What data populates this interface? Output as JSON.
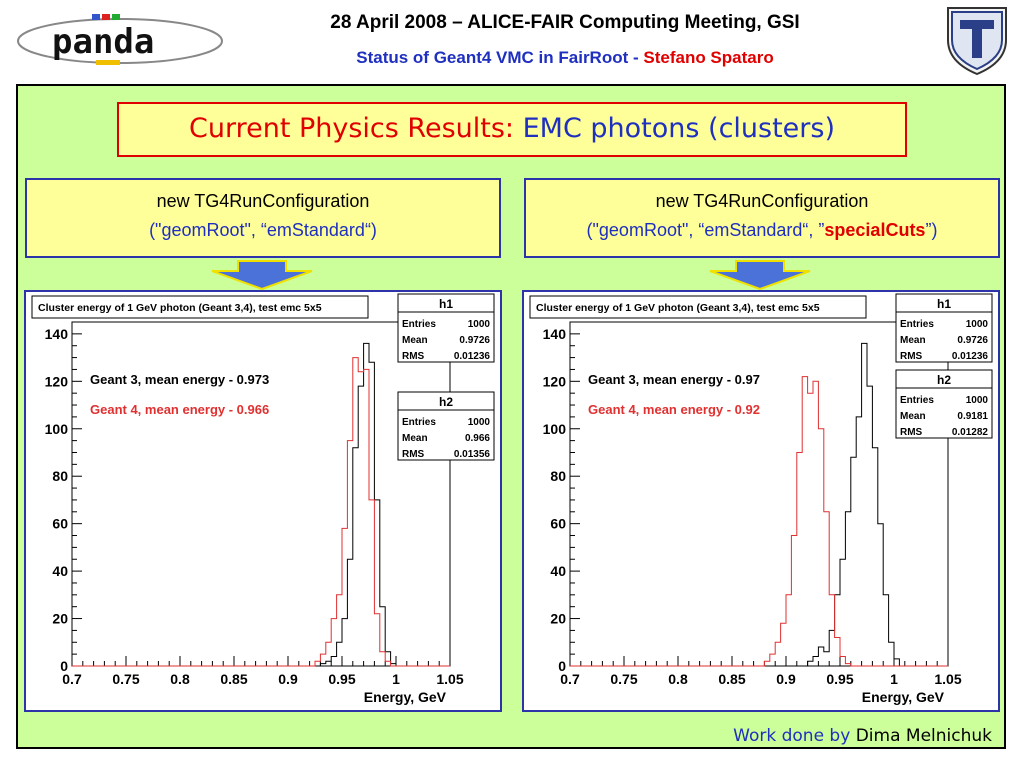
{
  "header": {
    "line1": "28 April 2008 – ALICE-FAIR Computing Meeting, GSI",
    "line2_blue": "Status of Geant4 VMC in FairRoot - ",
    "line2_red": "Stefano Spataro",
    "logo_text": "panda"
  },
  "slide": {
    "title_part1": "Current Physics Results: ",
    "title_part2": "EMC photons (clusters)",
    "left_config": {
      "line1": "new TG4RunConfiguration",
      "line2": "(\"geomRoot\", “emStandard“)"
    },
    "right_config": {
      "line1": "new TG4RunConfiguration",
      "line2a": "(\"geomRoot\", “emStandard“, ”",
      "line2b": "specialCuts",
      "line2c": "”)"
    },
    "footer_a": "Work done by ",
    "footer_b": "Dima Melnichuk"
  },
  "colors": {
    "green_bg": "#ccff99",
    "yellow_box": "#ffff99",
    "title_red": "#e00000",
    "blue": "#1f2fbf",
    "geant3": "#000000",
    "geant4": "#e03030"
  },
  "chart_data": [
    {
      "type": "histogram",
      "title": "Cluster energy of 1 GeV photon (Geant 3,4), test emc 5x5",
      "xlabel": "Energy, GeV",
      "ylabel": "",
      "xlim": [
        0.7,
        1.05
      ],
      "ylim": [
        0,
        145
      ],
      "xticks": [
        "0.7",
        "0.75",
        "0.8",
        "0.85",
        "0.9",
        "0.95",
        "1",
        "1.05"
      ],
      "yticks": [
        "0",
        "20",
        "40",
        "60",
        "80",
        "100",
        "120",
        "140"
      ],
      "annotations": [
        {
          "text": "Geant 3, mean energy - 0.973",
          "color": "#000000"
        },
        {
          "text": "Geant 4, mean energy - 0.966",
          "color": "#e03030"
        }
      ],
      "stats": [
        {
          "name": "h1",
          "rows": [
            [
              "Entries",
              "1000"
            ],
            [
              "Mean",
              "0.9726"
            ],
            [
              "RMS",
              "0.01236"
            ]
          ]
        },
        {
          "name": "h2",
          "rows": [
            [
              "Entries",
              "1000"
            ],
            [
              "Mean",
              "0.966"
            ],
            [
              "RMS",
              "0.01356"
            ]
          ]
        }
      ],
      "series": [
        {
          "name": "Geant 3",
          "color": "#000000",
          "bins": [
            [
              0.93,
              1
            ],
            [
              0.935,
              2
            ],
            [
              0.94,
              4
            ],
            [
              0.945,
              10
            ],
            [
              0.95,
              20
            ],
            [
              0.955,
              45
            ],
            [
              0.96,
              92
            ],
            [
              0.965,
              118
            ],
            [
              0.97,
              136
            ],
            [
              0.975,
              128
            ],
            [
              0.98,
              70
            ],
            [
              0.985,
              25
            ],
            [
              0.99,
              6
            ],
            [
              0.995,
              1
            ]
          ]
        },
        {
          "name": "Geant 4",
          "color": "#e03030",
          "bins": [
            [
              0.925,
              2
            ],
            [
              0.93,
              5
            ],
            [
              0.935,
              10
            ],
            [
              0.94,
              20
            ],
            [
              0.945,
              30
            ],
            [
              0.95,
              58
            ],
            [
              0.955,
              95
            ],
            [
              0.96,
              130
            ],
            [
              0.965,
              124
            ],
            [
              0.97,
              125
            ],
            [
              0.975,
              70
            ],
            [
              0.98,
              22
            ],
            [
              0.985,
              6
            ],
            [
              0.99,
              2
            ]
          ]
        }
      ]
    },
    {
      "type": "histogram",
      "title": "Cluster energy of 1 GeV photon (Geant 3,4), test emc 5x5",
      "xlabel": "Energy, GeV",
      "ylabel": "",
      "xlim": [
        0.7,
        1.05
      ],
      "ylim": [
        0,
        145
      ],
      "xticks": [
        "0.7",
        "0.75",
        "0.8",
        "0.85",
        "0.9",
        "0.95",
        "1",
        "1.05"
      ],
      "yticks": [
        "0",
        "20",
        "40",
        "60",
        "80",
        "100",
        "120",
        "140"
      ],
      "annotations": [
        {
          "text": "Geant 3, mean energy - 0.97",
          "color": "#000000"
        },
        {
          "text": "Geant 4, mean energy - 0.92",
          "color": "#e03030"
        }
      ],
      "stats": [
        {
          "name": "h1",
          "rows": [
            [
              "Entries",
              "1000"
            ],
            [
              "Mean",
              "0.9726"
            ],
            [
              "RMS",
              "0.01236"
            ]
          ]
        },
        {
          "name": "h2",
          "rows": [
            [
              "Entries",
              "1000"
            ],
            [
              "Mean",
              "0.9181"
            ],
            [
              "RMS",
              "0.01282"
            ]
          ]
        }
      ],
      "series": [
        {
          "name": "Geant 3",
          "color": "#000000",
          "bins": [
            [
              0.92,
              2
            ],
            [
              0.925,
              4
            ],
            [
              0.93,
              8
            ],
            [
              0.935,
              6
            ],
            [
              0.94,
              15
            ],
            [
              0.945,
              30
            ],
            [
              0.95,
              45
            ],
            [
              0.955,
              65
            ],
            [
              0.96,
              88
            ],
            [
              0.965,
              105
            ],
            [
              0.97,
              136
            ],
            [
              0.975,
              118
            ],
            [
              0.98,
              92
            ],
            [
              0.985,
              60
            ],
            [
              0.99,
              30
            ],
            [
              0.995,
              10
            ],
            [
              1.0,
              3
            ]
          ]
        },
        {
          "name": "Geant 4",
          "color": "#e03030",
          "bins": [
            [
              0.88,
              2
            ],
            [
              0.885,
              5
            ],
            [
              0.89,
              10
            ],
            [
              0.895,
              18
            ],
            [
              0.9,
              30
            ],
            [
              0.905,
              55
            ],
            [
              0.91,
              90
            ],
            [
              0.915,
              122
            ],
            [
              0.92,
              115
            ],
            [
              0.925,
              120
            ],
            [
              0.93,
              100
            ],
            [
              0.935,
              65
            ],
            [
              0.94,
              30
            ],
            [
              0.945,
              12
            ],
            [
              0.95,
              4
            ],
            [
              0.955,
              1
            ]
          ]
        }
      ]
    }
  ]
}
